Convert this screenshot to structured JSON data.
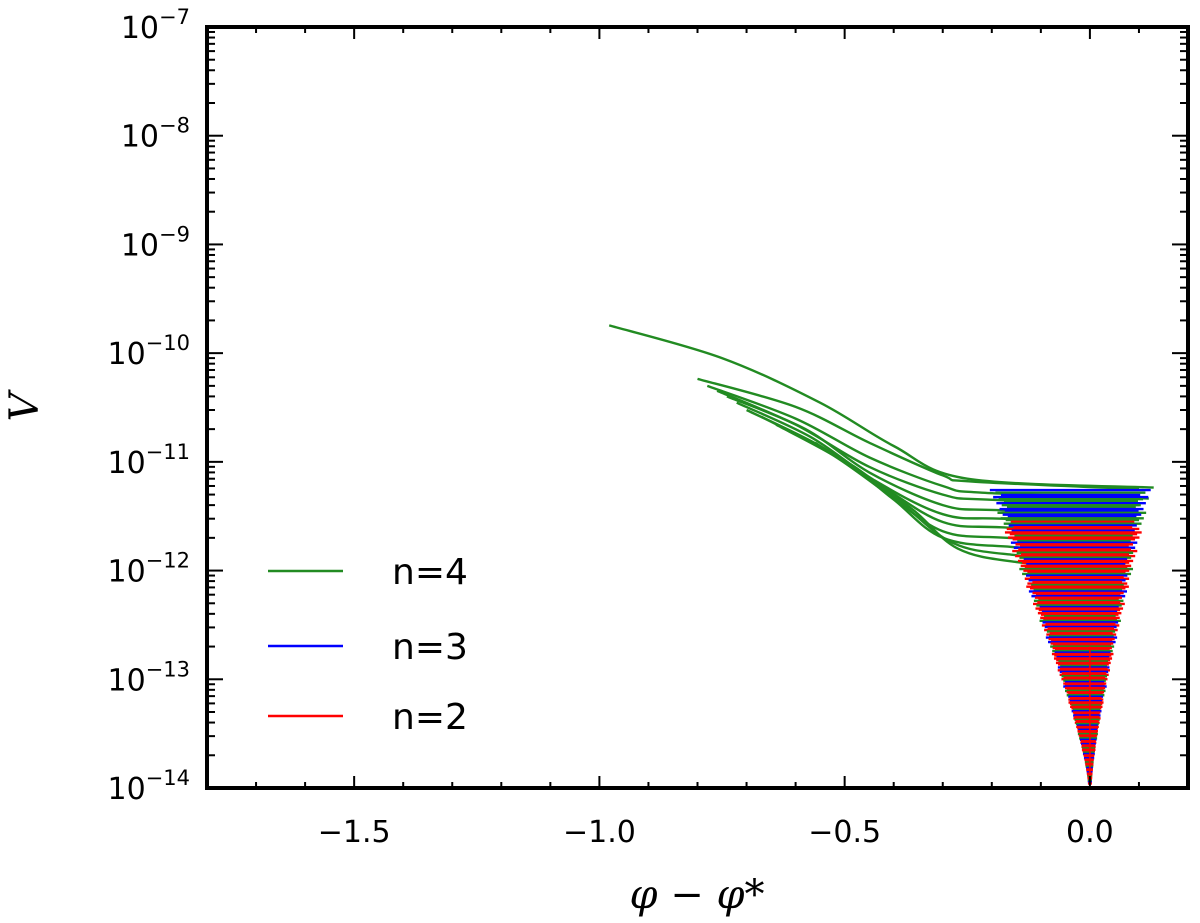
{
  "chart_data": {
    "type": "line",
    "title": "",
    "xlabel": "φ − φ*",
    "ylabel": "V",
    "xlim": [
      -1.8,
      0.2
    ],
    "ylim": [
      1e-14,
      1e-07
    ],
    "yscale": "log",
    "grid": false,
    "legend_position": "bottom-left",
    "x_ticks": [
      {
        "value": -1.5,
        "label": "−1.5"
      },
      {
        "value": -1.0,
        "label": "−1.0"
      },
      {
        "value": -0.5,
        "label": "−0.5"
      },
      {
        "value": 0.0,
        "label": "0.0"
      }
    ],
    "y_ticks": [
      {
        "value": 1e-14,
        "base": "10",
        "exp": "−14"
      },
      {
        "value": 1e-13,
        "base": "10",
        "exp": "−13"
      },
      {
        "value": 1e-12,
        "base": "10",
        "exp": "−12"
      },
      {
        "value": 1e-11,
        "base": "10",
        "exp": "−11"
      },
      {
        "value": 1e-10,
        "base": "10",
        "exp": "−10"
      },
      {
        "value": 1e-09,
        "base": "10",
        "exp": "−9"
      },
      {
        "value": 1e-08,
        "base": "10",
        "exp": "−8"
      },
      {
        "value": 1e-07,
        "base": "10",
        "exp": "−7"
      }
    ],
    "series": [
      {
        "name": "n=4",
        "color": "#228B22",
        "curves": [
          {
            "x": [
              -0.98,
              -0.75,
              -0.55,
              -0.4,
              -0.25,
              0.13
            ],
            "y": [
              1.8e-10,
              9e-11,
              3.5e-11,
              1.4e-11,
              7e-12,
              5.8e-12
            ]
          },
          {
            "x": [
              -0.8,
              -0.6,
              -0.45,
              -0.3,
              -0.24,
              0.1
            ],
            "y": [
              5.8e-11,
              3.2e-11,
              1.5e-11,
              7.5e-12,
              6.6e-12,
              5.6e-12
            ]
          },
          {
            "x": [
              -0.78,
              -0.6,
              -0.45,
              -0.3,
              -0.22,
              0.12
            ],
            "y": [
              5e-11,
              2.5e-11,
              1.1e-11,
              6e-12,
              5.2e-12,
              4.6e-12
            ]
          },
          {
            "x": [
              -0.76,
              -0.6,
              -0.45,
              -0.3,
              -0.21,
              0.1
            ],
            "y": [
              4.5e-11,
              2.2e-11,
              9e-12,
              5e-12,
              4.5e-12,
              4e-12
            ]
          },
          {
            "x": [
              -0.74,
              -0.58,
              -0.45,
              -0.3,
              -0.19,
              0.1
            ],
            "y": [
              4e-11,
              2e-11,
              8e-12,
              4e-12,
              3.6e-12,
              3.3e-12
            ]
          },
          {
            "x": [
              -0.72,
              -0.57,
              -0.44,
              -0.3,
              -0.18,
              0.09
            ],
            "y": [
              3.5e-11,
              1.7e-11,
              6.8e-12,
              3.3e-12,
              3e-12,
              2.8e-12
            ]
          },
          {
            "x": [
              -0.7,
              -0.55,
              -0.42,
              -0.3,
              -0.18,
              0.08
            ],
            "y": [
              3e-11,
              1.4e-11,
              5.8e-12,
              2.8e-12,
              2.5e-12,
              2.3e-12
            ]
          },
          {
            "x": [
              -0.67,
              -0.53,
              -0.41,
              -0.3,
              -0.17,
              0.07
            ],
            "y": [
              2.6e-11,
              1.2e-11,
              5e-12,
              2.3e-12,
              2e-12,
              1.8e-12
            ]
          },
          {
            "x": [
              -0.64,
              -0.5,
              -0.4,
              -0.3,
              -0.16,
              0.06
            ],
            "y": [
              2.2e-11,
              1e-11,
              4.5e-12,
              2e-12,
              1.65e-12,
              1.5e-12
            ]
          },
          {
            "x": [
              -0.6,
              -0.48,
              -0.38,
              -0.28,
              -0.16,
              0.05
            ],
            "y": [
              1.8e-11,
              9e-12,
              4e-12,
              1.8e-12,
              1.4e-12,
              1.25e-12
            ]
          },
          {
            "x": [
              -0.56,
              -0.46,
              -0.36,
              -0.27,
              -0.15,
              0.04
            ],
            "y": [
              1.5e-11,
              7.5e-12,
              3.6e-12,
              1.6e-12,
              1.2e-12,
              1.05e-12
            ]
          }
        ]
      },
      {
        "name": "n=3",
        "color": "#0000FF",
        "curves": []
      },
      {
        "name": "n=2",
        "color": "#FF0000",
        "curves": []
      }
    ],
    "funnel": {
      "x_center": 0.0,
      "x_left_top": -0.2,
      "x_right_top": 0.12,
      "v_top": 5.5e-12,
      "v_bottom": 1.1e-14
    }
  }
}
